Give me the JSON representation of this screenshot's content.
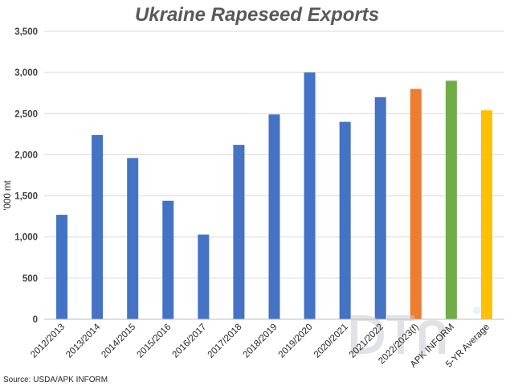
{
  "chart_data": {
    "type": "bar",
    "title": "Ukraine Rapeseed Exports",
    "ylabel": "'000 mt",
    "xlabel": "",
    "ylim": [
      0,
      3500
    ],
    "yticks": [
      0,
      500,
      1000,
      1500,
      2000,
      2500,
      3000,
      3500
    ],
    "ytick_labels": [
      "0",
      "500",
      "1,000",
      "1,500",
      "2,000",
      "2,500",
      "3,000",
      "3,500"
    ],
    "grid": true,
    "legend": "none",
    "categories": [
      "2012/2013",
      "2013/2014",
      "2014/2015",
      "2015/2016",
      "2016/2017",
      "2017/2018",
      "2018/2019",
      "2019/2020",
      "2020/2021",
      "2021/2022",
      "2022/2023(f)",
      "APK INFORM",
      "5-YR Average"
    ],
    "values": [
      1270,
      2240,
      1960,
      1440,
      1030,
      2120,
      2490,
      3000,
      2400,
      2700,
      2800,
      2900,
      2540
    ],
    "colors": [
      "#4472c4",
      "#4472c4",
      "#4472c4",
      "#4472c4",
      "#4472c4",
      "#4472c4",
      "#4472c4",
      "#4472c4",
      "#4472c4",
      "#4472c4",
      "#ed7d31",
      "#70ad47",
      "#ffc000"
    ],
    "source": "Source: USDA/APK INFORM",
    "watermark": "DTN"
  }
}
